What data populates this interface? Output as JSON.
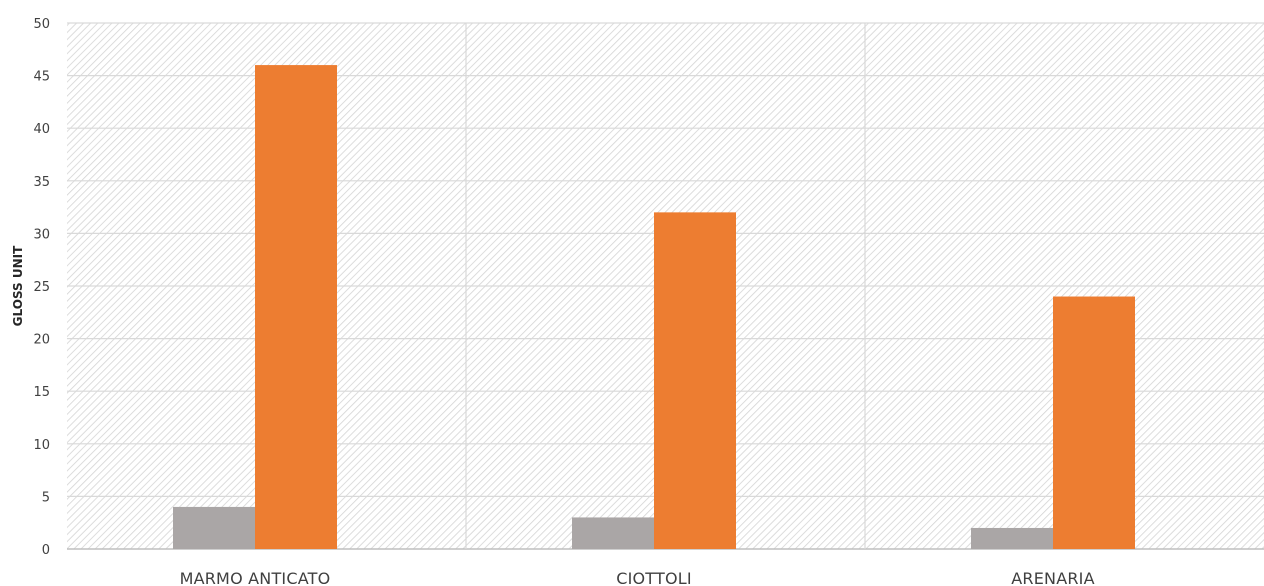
{
  "chart_data": {
    "type": "bar",
    "title": "",
    "xlabel": "",
    "ylabel": "GLOSS UNIT",
    "ylim": [
      0,
      50
    ],
    "yticks": [
      0,
      5,
      10,
      15,
      20,
      25,
      30,
      35,
      40,
      45,
      50
    ],
    "categories": [
      "MARMO ANTICATO",
      "CIOTTOLI",
      "ARENARIA"
    ],
    "series": [
      {
        "values": [
          4,
          3,
          2
        ],
        "color": "#aaa6a6"
      },
      {
        "values": [
          46,
          32,
          24
        ],
        "color": "#ed7d31"
      }
    ],
    "grid": true,
    "legend": "none",
    "background": "hatched"
  }
}
